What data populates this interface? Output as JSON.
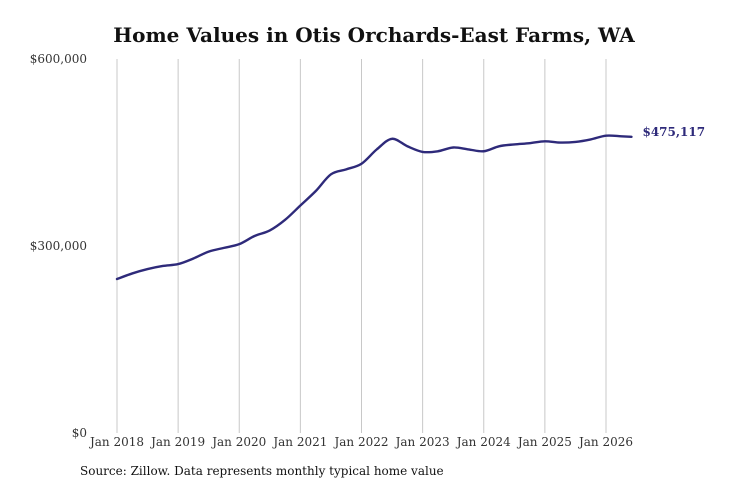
{
  "chart_data": {
    "type": "line",
    "title": "Home Values in Otis Orchards-East Farms, WA",
    "xlabel": "",
    "ylabel": "",
    "ylim": [
      0,
      600000
    ],
    "yticks": [
      0,
      300000,
      600000
    ],
    "ytick_labels": [
      "$0",
      "$300,000",
      "$600,000"
    ],
    "xticks": [
      "Jan 2018",
      "Jan 2019",
      "Jan 2020",
      "Jan 2021",
      "Jan 2022",
      "Jan 2023",
      "Jan 2024",
      "Jan 2025",
      "Jan 2026"
    ],
    "grid": "vertical",
    "line_color": "#2e2a7a",
    "series": [
      {
        "x": [
          "2018-01",
          "2018-04",
          "2018-07",
          "2018-10",
          "2019-01",
          "2019-04",
          "2019-07",
          "2019-10",
          "2020-01",
          "2020-04",
          "2020-07",
          "2020-10",
          "2021-01",
          "2021-04",
          "2021-07",
          "2021-10",
          "2022-01",
          "2022-04",
          "2022-07",
          "2022-10",
          "2023-01",
          "2023-04",
          "2023-07",
          "2023-10",
          "2024-01",
          "2024-04",
          "2024-07",
          "2024-10",
          "2025-01",
          "2025-04",
          "2025-07",
          "2025-10",
          "2026-01",
          "2026-04",
          "2026-06"
        ],
        "values": [
          247000,
          256000,
          263000,
          268000,
          271000,
          280000,
          291000,
          297000,
          303000,
          316000,
          325000,
          342000,
          365000,
          388000,
          415000,
          423000,
          432000,
          455000,
          472000,
          460000,
          451000,
          452000,
          458000,
          455000,
          452000,
          460000,
          463000,
          465000,
          468000,
          466000,
          467000,
          471000,
          477000,
          476000,
          475117
        ]
      }
    ],
    "end_label": "$475,117"
  },
  "source_text": "Source: Zillow. Data represents monthly typical home value"
}
